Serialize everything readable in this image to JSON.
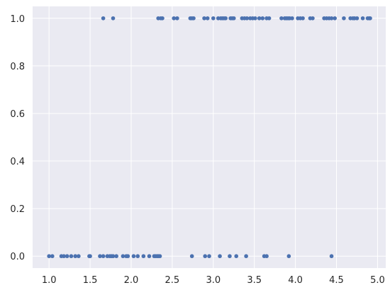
{
  "chart_data": {
    "type": "scatter",
    "title": "",
    "xlabel": "",
    "ylabel": "",
    "xlim": [
      0.8,
      5.1
    ],
    "ylim": [
      -0.05,
      1.05
    ],
    "xticks": [
      "1.0",
      "1.5",
      "2.0",
      "2.5",
      "3.0",
      "3.5",
      "4.0",
      "4.5",
      "5.0"
    ],
    "yticks": [
      "0.0",
      "0.2",
      "0.4",
      "0.6",
      "0.8",
      "1.0"
    ],
    "grid": true,
    "style": "seaborn-darkgrid",
    "colors": {
      "background": "#eaeaf2",
      "grid": "#ffffff",
      "marker": "#4c72b0"
    },
    "series": [
      {
        "points": [
          [
            1.0,
            0
          ],
          [
            1.04,
            0
          ],
          [
            1.15,
            0
          ],
          [
            1.18,
            0
          ],
          [
            1.22,
            0
          ],
          [
            1.27,
            0
          ],
          [
            1.32,
            0
          ],
          [
            1.36,
            0
          ],
          [
            1.49,
            0
          ],
          [
            1.5,
            0
          ],
          [
            1.62,
            0
          ],
          [
            1.66,
            0
          ],
          [
            1.71,
            0
          ],
          [
            1.74,
            0
          ],
          [
            1.76,
            0
          ],
          [
            1.78,
            0
          ],
          [
            1.82,
            0
          ],
          [
            1.9,
            0
          ],
          [
            1.94,
            0
          ],
          [
            1.96,
            0
          ],
          [
            2.03,
            0
          ],
          [
            2.08,
            0
          ],
          [
            2.15,
            0
          ],
          [
            2.22,
            0
          ],
          [
            2.28,
            0
          ],
          [
            2.3,
            0
          ],
          [
            2.32,
            0
          ],
          [
            2.33,
            0
          ],
          [
            2.35,
            0
          ],
          [
            2.74,
            0
          ],
          [
            2.9,
            0
          ],
          [
            2.95,
            0
          ],
          [
            3.08,
            0
          ],
          [
            3.2,
            0
          ],
          [
            3.28,
            0
          ],
          [
            3.4,
            0
          ],
          [
            3.62,
            0
          ],
          [
            3.65,
            0
          ],
          [
            3.92,
            0
          ],
          [
            4.44,
            0
          ],
          [
            1.66,
            1
          ],
          [
            1.78,
            1
          ],
          [
            2.33,
            1
          ],
          [
            2.36,
            1
          ],
          [
            2.38,
            1
          ],
          [
            2.52,
            1
          ],
          [
            2.56,
            1
          ],
          [
            2.72,
            1
          ],
          [
            2.74,
            1
          ],
          [
            2.76,
            1
          ],
          [
            2.89,
            1
          ],
          [
            2.93,
            1
          ],
          [
            3.0,
            1
          ],
          [
            3.06,
            1
          ],
          [
            3.09,
            1
          ],
          [
            3.11,
            1
          ],
          [
            3.13,
            1
          ],
          [
            3.15,
            1
          ],
          [
            3.21,
            1
          ],
          [
            3.23,
            1
          ],
          [
            3.25,
            1
          ],
          [
            3.35,
            1
          ],
          [
            3.38,
            1
          ],
          [
            3.41,
            1
          ],
          [
            3.45,
            1
          ],
          [
            3.48,
            1
          ],
          [
            3.51,
            1
          ],
          [
            3.56,
            1
          ],
          [
            3.6,
            1
          ],
          [
            3.65,
            1
          ],
          [
            3.68,
            1
          ],
          [
            3.83,
            1
          ],
          [
            3.87,
            1
          ],
          [
            3.89,
            1
          ],
          [
            3.91,
            1
          ],
          [
            3.93,
            1
          ],
          [
            3.96,
            1
          ],
          [
            4.03,
            1
          ],
          [
            4.06,
            1
          ],
          [
            4.09,
            1
          ],
          [
            4.18,
            1
          ],
          [
            4.21,
            1
          ],
          [
            4.35,
            1
          ],
          [
            4.38,
            1
          ],
          [
            4.41,
            1
          ],
          [
            4.44,
            1
          ],
          [
            4.48,
            1
          ],
          [
            4.59,
            1
          ],
          [
            4.67,
            1
          ],
          [
            4.7,
            1
          ],
          [
            4.72,
            1
          ],
          [
            4.75,
            1
          ],
          [
            4.82,
            1
          ],
          [
            4.88,
            1
          ],
          [
            4.9,
            1
          ],
          [
            4.91,
            1
          ]
        ]
      }
    ]
  }
}
